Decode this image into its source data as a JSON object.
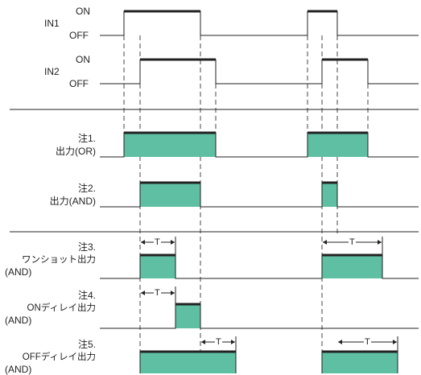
{
  "signals": {
    "in1": {
      "name": "IN1",
      "on": "ON",
      "off": "OFF"
    },
    "in2": {
      "name": "IN2",
      "on": "ON",
      "off": "OFF"
    }
  },
  "outputs": {
    "or": {
      "note": "注1.",
      "label": "出力(OR)"
    },
    "and": {
      "note": "注2.",
      "label": "出力(AND)"
    },
    "oneshot": {
      "note": "注3.",
      "label": "ワンショット出力",
      "mode": "(AND)"
    },
    "ondelay": {
      "note": "注4.",
      "label": "ONディレイ出力",
      "mode": "(AND)"
    },
    "offdelay": {
      "note": "注5.",
      "label": "OFFディレイ出力",
      "mode": "(AND)"
    }
  },
  "timer_label": "T",
  "colors": {
    "fill": "#5fbfa2",
    "line": "#222222",
    "dash": "#444444"
  }
}
